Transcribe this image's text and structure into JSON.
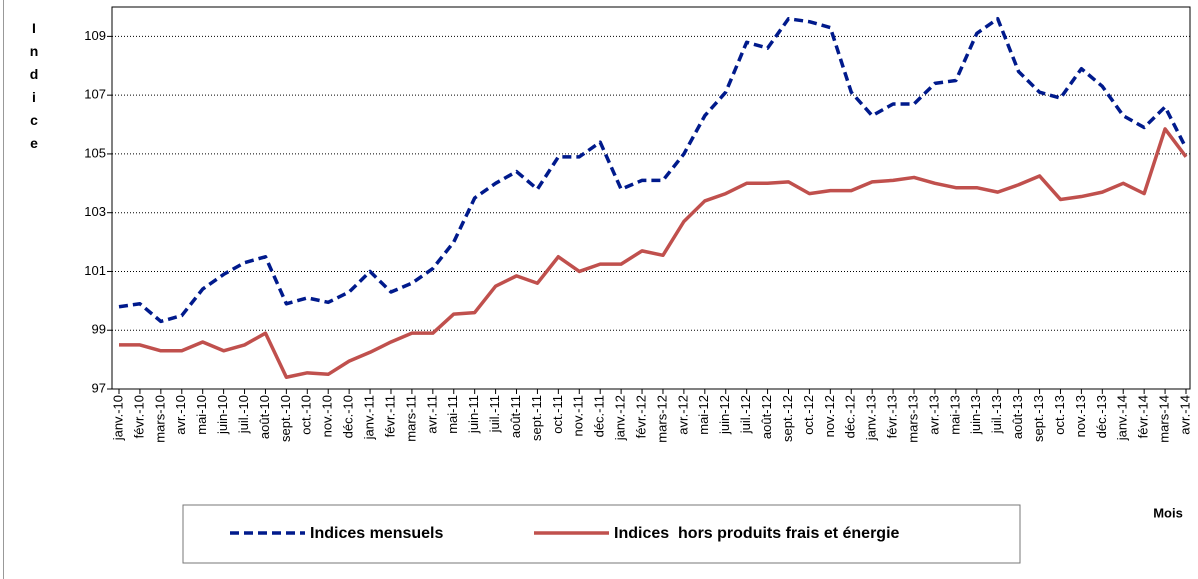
{
  "chart_data": {
    "type": "line",
    "y_label": "Indice",
    "x_label": "Mois",
    "categories": [
      "janv.-10",
      "févr.-10",
      "mars-10",
      "avr.-10",
      "mai-10",
      "juin-10",
      "juil.-10",
      "août-10",
      "sept.-10",
      "oct.-10",
      "nov.-10",
      "déc.-10",
      "janv.-11",
      "févr.-11",
      "mars-11",
      "avr.-11",
      "mai-11",
      "juin-11",
      "juil.-11",
      "août-11",
      "sept.-11",
      "oct.-11",
      "nov.-11",
      "déc.-11",
      "janv.-12",
      "févr.-12",
      "mars-12",
      "avr.-12",
      "mai-12",
      "juin-12",
      "juil.-12",
      "août-12",
      "sept.-12",
      "oct.-12",
      "nov.-12",
      "déc.-12",
      "janv.-13",
      "févr.-13",
      "mars-13",
      "avr.-13",
      "mai-13",
      "juin-13",
      "juil.-13",
      "août-13",
      "sept.-13",
      "oct.-13",
      "nov.-13",
      "déc.-13",
      "janv.-14",
      "févr.-14",
      "mars-14",
      "avr.-14"
    ],
    "series": [
      {
        "name": "Indices mensuels",
        "color": "#001a8c",
        "dash": true,
        "values": [
          99.8,
          99.9,
          99.3,
          99.5,
          100.4,
          100.9,
          101.3,
          101.5,
          99.9,
          100.1,
          99.95,
          100.3,
          101.0,
          100.3,
          100.6,
          101.1,
          102.0,
          103.5,
          104.0,
          104.4,
          103.8,
          104.9,
          104.9,
          105.4,
          103.8,
          104.1,
          104.1,
          105.0,
          106.3,
          107.1,
          108.8,
          108.6,
          109.6,
          109.5,
          109.3,
          107.1,
          106.3,
          106.7,
          106.7,
          107.4,
          107.5,
          109.1,
          109.6,
          107.8,
          107.1,
          106.9,
          107.9,
          107.3,
          106.3,
          105.9,
          106.6,
          105.2
        ]
      },
      {
        "name": "Indices  hors produits frais et énergie",
        "color": "#c0504d",
        "dash": false,
        "values": [
          98.5,
          98.5,
          98.3,
          98.3,
          98.6,
          98.3,
          98.5,
          98.9,
          97.4,
          97.55,
          97.5,
          97.95,
          98.25,
          98.6,
          98.9,
          98.9,
          99.55,
          99.6,
          100.5,
          100.85,
          100.6,
          101.5,
          101.0,
          101.25,
          101.25,
          101.7,
          101.55,
          102.7,
          103.4,
          103.65,
          104.0,
          104.0,
          104.05,
          103.65,
          103.75,
          103.75,
          104.05,
          104.1,
          104.2,
          104.0,
          103.85,
          103.85,
          103.7,
          103.95,
          104.25,
          103.45,
          103.55,
          103.7,
          104.0,
          103.65,
          105.85,
          104.9
        ]
      }
    ],
    "ylim": [
      97,
      110
    ],
    "yticks": [
      97,
      99,
      101,
      103,
      105,
      107,
      109
    ],
    "grid": true
  }
}
